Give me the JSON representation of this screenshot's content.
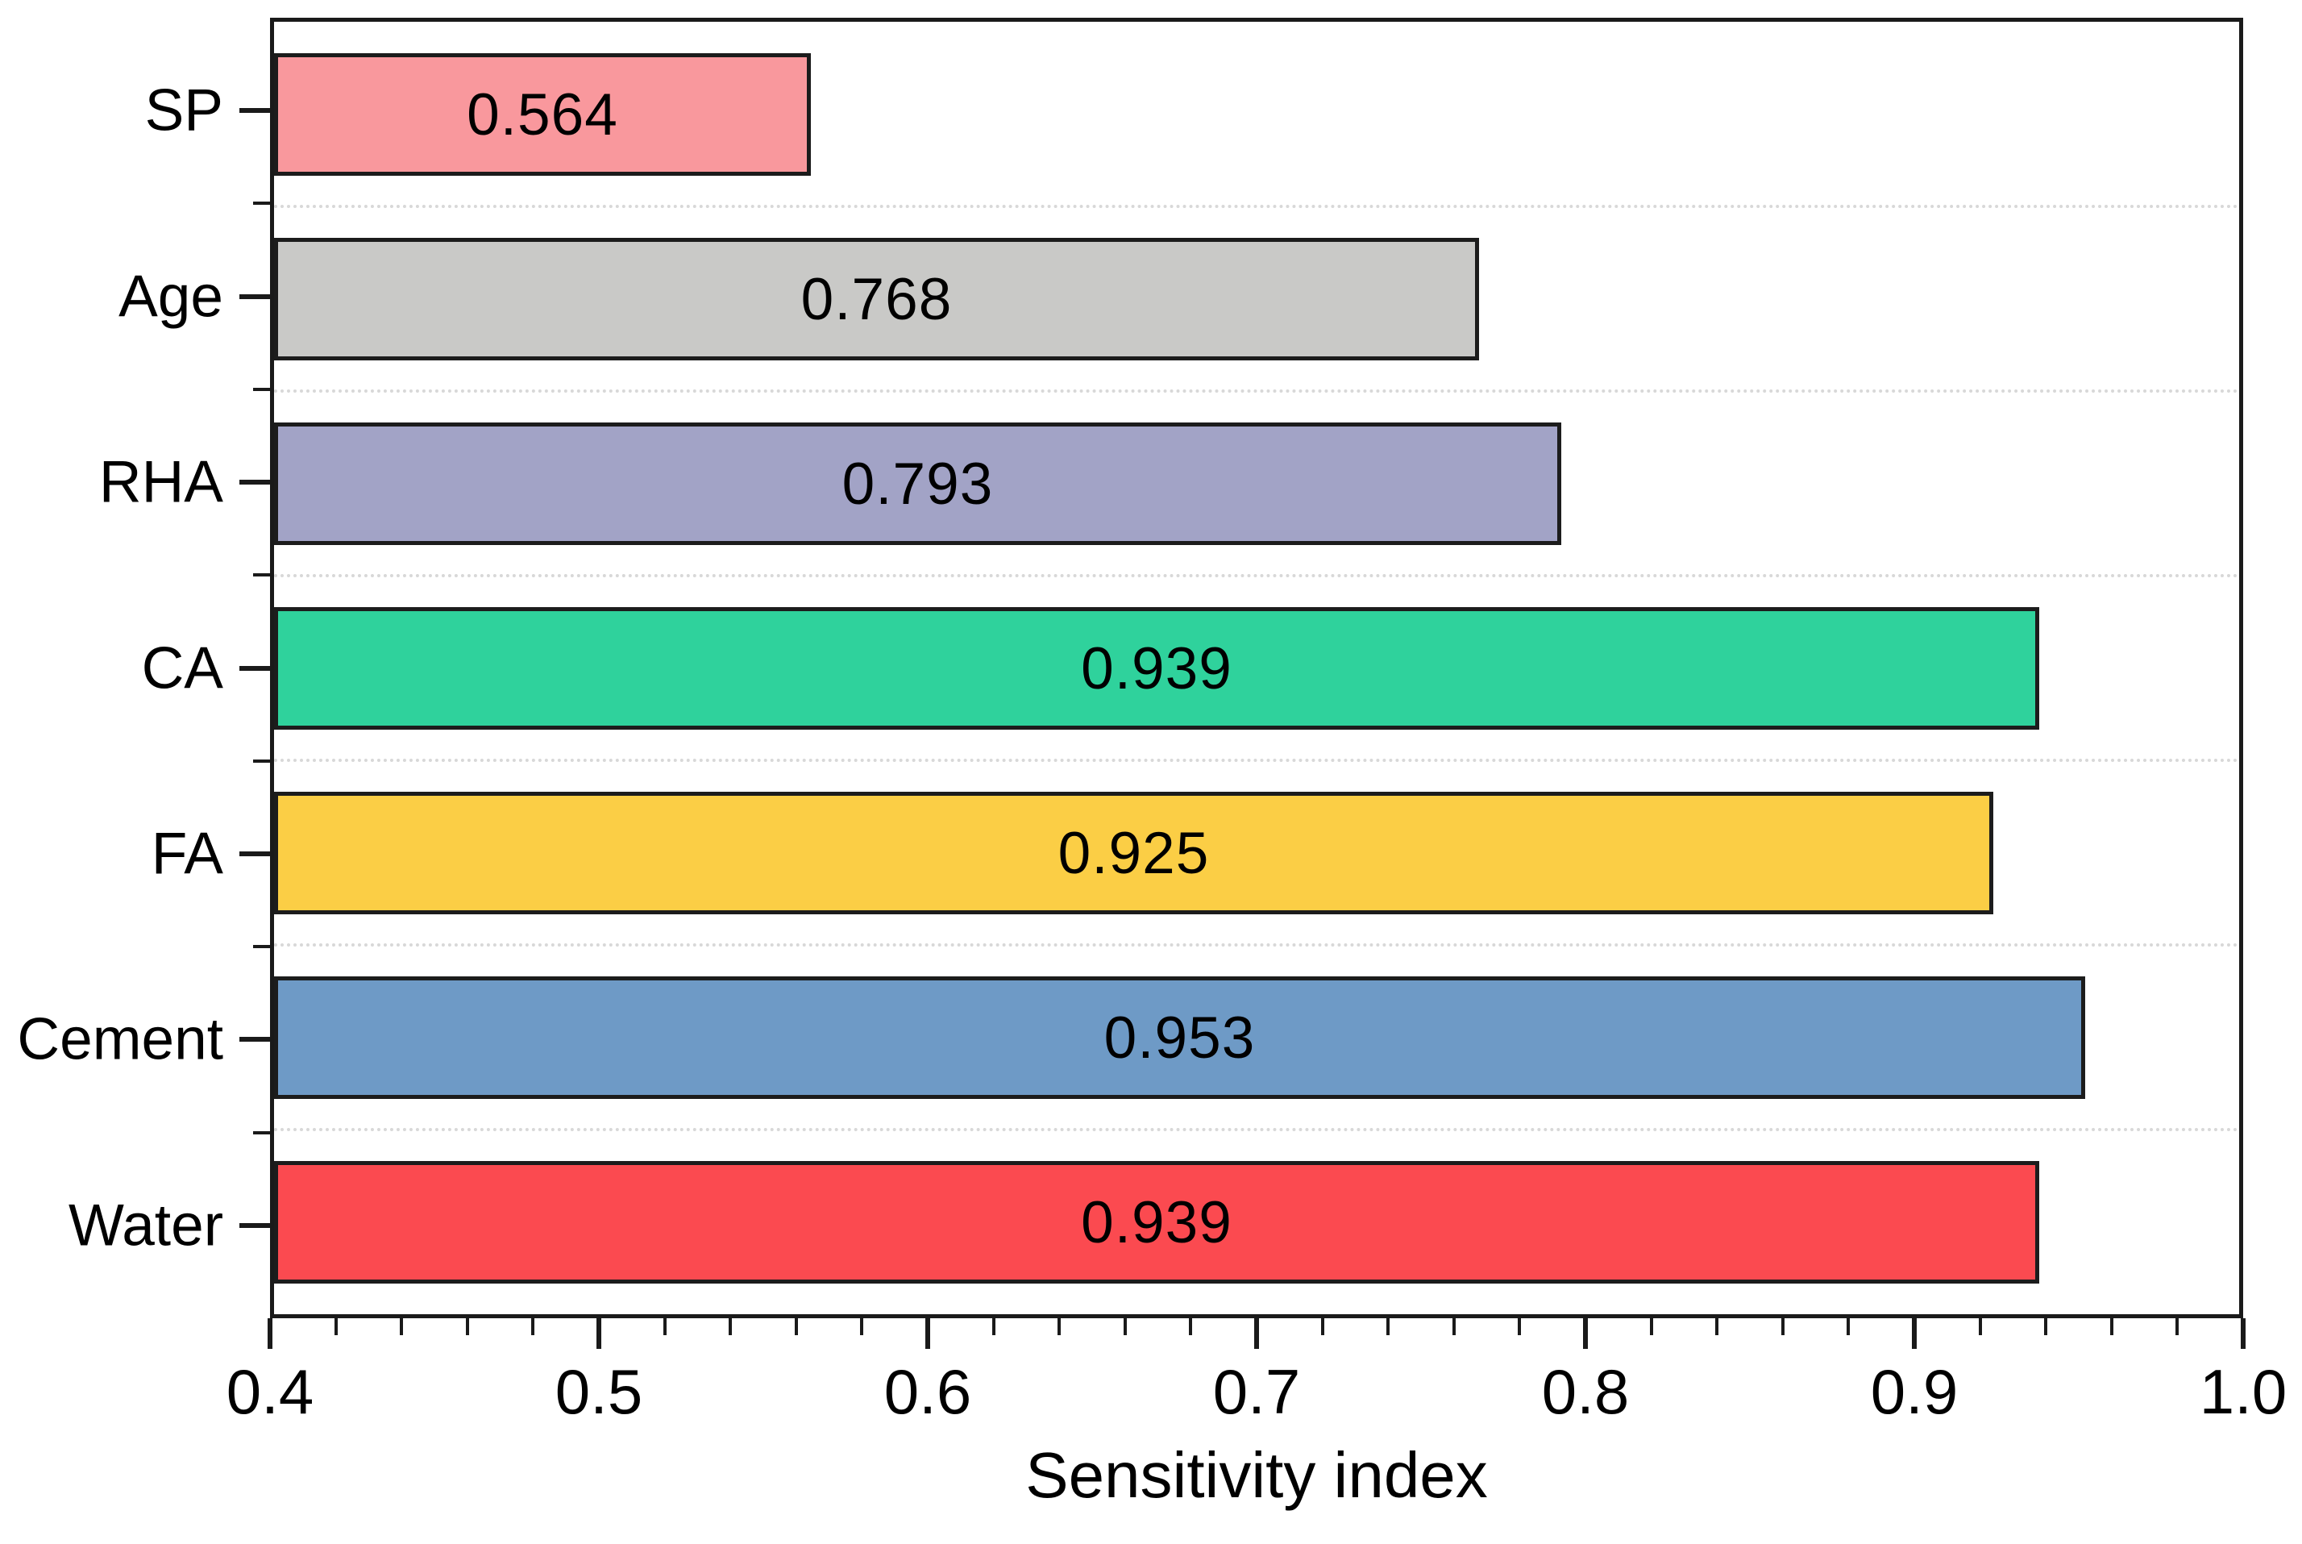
{
  "chart_data": {
    "type": "bar",
    "orientation": "horizontal",
    "title": "",
    "xlabel": "Sensitivity index",
    "ylabel": "",
    "xlim": [
      0.4,
      1.0
    ],
    "x_major_ticks": [
      0.4,
      0.5,
      0.6,
      0.7,
      0.8,
      0.9,
      1.0
    ],
    "x_major_tick_labels": [
      "0.4",
      "0.5",
      "0.6",
      "0.7",
      "0.8",
      "0.9",
      "1.0"
    ],
    "x_minor_tick_step": 0.02,
    "grid": {
      "style": "dotted",
      "placement": "horizontal-between-categories",
      "on": true
    },
    "legend": "none",
    "categories": [
      "SP",
      "Age",
      "RHA",
      "CA",
      "FA",
      "Cement",
      "Water"
    ],
    "values": [
      0.564,
      0.768,
      0.793,
      0.939,
      0.925,
      0.953,
      0.939
    ],
    "bars": [
      {
        "category": "SP",
        "value": 0.564,
        "label": "0.564",
        "fill": "#F9989D"
      },
      {
        "category": "Age",
        "value": 0.768,
        "label": "0.768",
        "fill": "#C9C9C7"
      },
      {
        "category": "RHA",
        "value": 0.793,
        "label": "0.793",
        "fill": "#A2A3C6"
      },
      {
        "category": "CA",
        "value": 0.939,
        "label": "0.939",
        "fill": "#2FD29C"
      },
      {
        "category": "FA",
        "value": 0.925,
        "label": "0.925",
        "fill": "#FBCE45"
      },
      {
        "category": "Cement",
        "value": 0.953,
        "label": "0.953",
        "fill": "#6E9AC6"
      },
      {
        "category": "Water",
        "value": 0.939,
        "label": "0.939",
        "fill": "#FB4A50"
      }
    ],
    "colors": {
      "bar_edge": "#1c1c1c",
      "axis": "#1a1a1a",
      "gridline": "#d8d8d8",
      "text": "#000000",
      "background": "#ffffff"
    }
  }
}
